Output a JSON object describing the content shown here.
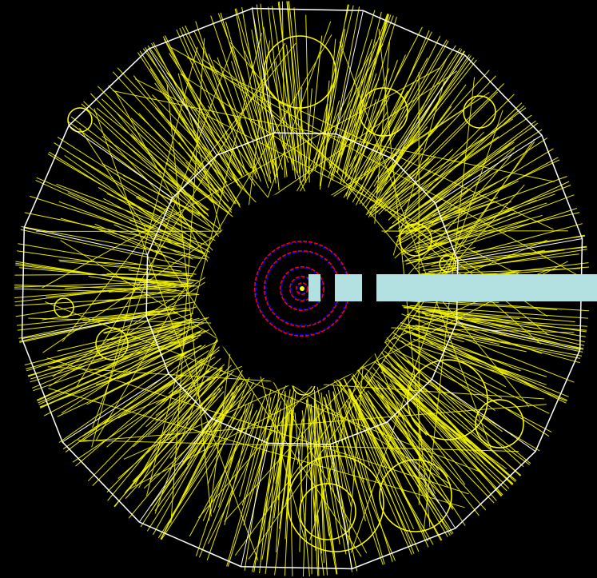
{
  "scene": {
    "background_color": "#000000",
    "detector_outline_color": "#ffffff",
    "track_color": "#ffff00",
    "vertex_ring_primary_color": "#ff0000",
    "vertex_ring_secondary_color": "#0000ff",
    "beam_element_color": "#b3e0e0",
    "outer_sectors": 16,
    "inner_sectors": 16,
    "straight_track_count": 520,
    "curl_count": 14,
    "vertex_ring_count": 5,
    "beam_block_count": 3
  }
}
